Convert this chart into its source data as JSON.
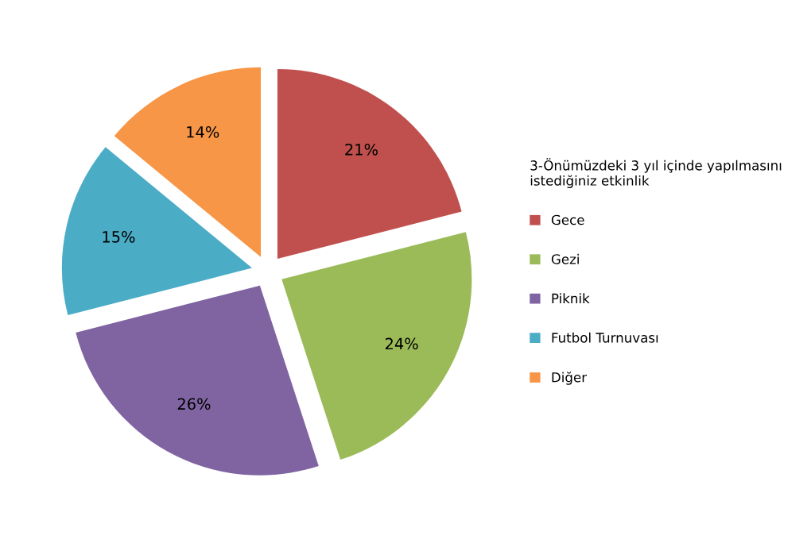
{
  "chart_data": {
    "type": "pie",
    "legend_title": "3-Önümüzdeki 3 yıl içinde yapılmasını istediğiniz etkinlik",
    "categories": [
      "Gece",
      "Gezi",
      "Piknik",
      "Futbol Turnuvası",
      "Diğer"
    ],
    "values": [
      21,
      24,
      26,
      15,
      14
    ],
    "value_labels": [
      "21%",
      "24%",
      "26%",
      "15%",
      "14%"
    ],
    "colors": [
      "#c0504d",
      "#9bbb59",
      "#8064a2",
      "#4bacc6",
      "#f79646"
    ],
    "legend": "right"
  }
}
